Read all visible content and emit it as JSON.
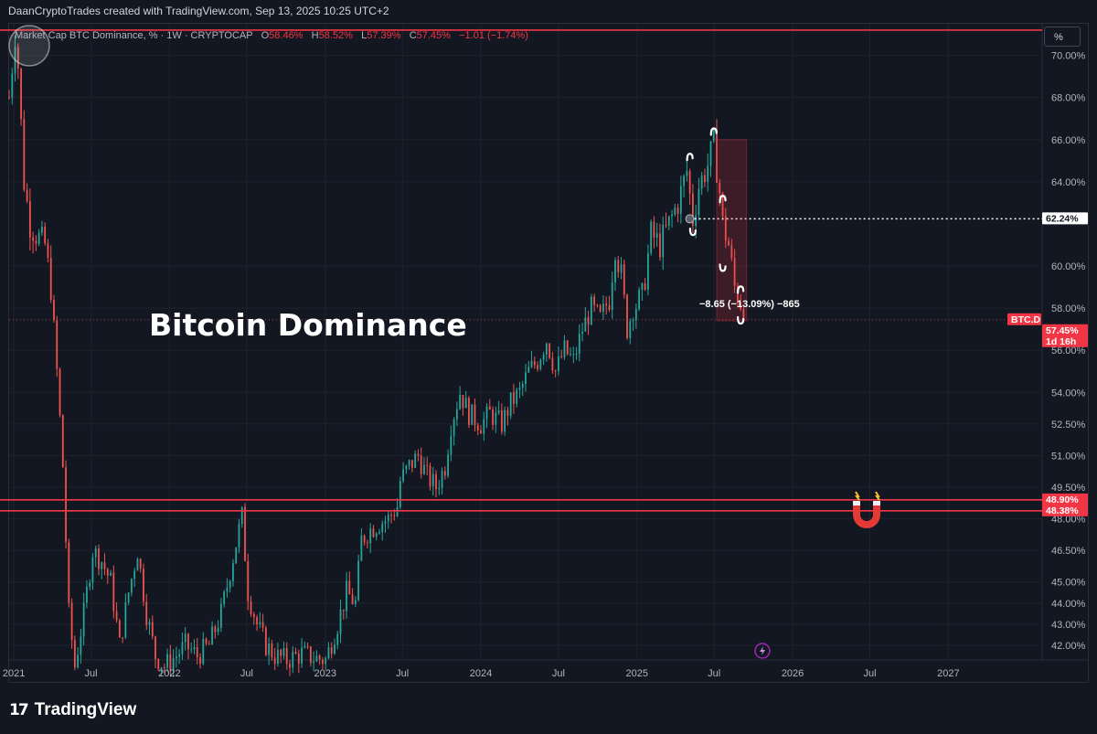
{
  "header": {
    "credit": "DaanCryptoTrades created with TradingView.com, Sep 13, 2025 10:25 UTC+2"
  },
  "legend": {
    "symbol": "Market Cap BTC Dominance, % · 1W · CRYPTOCAP",
    "o_label": "O",
    "o": "58.46%",
    "h_label": "H",
    "h": "58.52%",
    "l_label": "L",
    "l": "57.39%",
    "c_label": "C",
    "c": "57.45%",
    "change": "−1.01 (−1.74%)"
  },
  "toolbar": {
    "unit_button": "%"
  },
  "overlay": {
    "title": "Bitcoin Dominance",
    "measure": "−8.65 (−13.09%) −865"
  },
  "branding": {
    "logo_mark": "17",
    "logo_text": "TradingView"
  },
  "colors": {
    "background": "#131722",
    "up": "#26a69a",
    "down": "#ef5350",
    "line": "#f23645",
    "grid": "#1e222d"
  },
  "icons": [
    "magnet-icon",
    "lightning-icon",
    "circle-cursor-icon"
  ],
  "chart_data": {
    "type": "candlestick",
    "timeframe": "1W",
    "y_axis_unit": "%",
    "ylim": [
      41.3,
      71.5
    ],
    "xlim": [
      "2020-12-21",
      "2027-08-09"
    ],
    "y_ticks": [
      "70.00%",
      "68.00%",
      "66.00%",
      "64.00%",
      "60.00%",
      "58.00%",
      "56.00%",
      "54.00%",
      "52.50%",
      "51.00%",
      "49.50%",
      "48.00%",
      "46.50%",
      "45.00%",
      "44.00%",
      "43.00%",
      "42.00%"
    ],
    "y_tick_values": [
      70,
      68,
      66,
      64,
      60,
      58,
      56,
      54,
      52.5,
      51,
      49.5,
      48,
      46.5,
      45,
      44,
      43,
      42
    ],
    "x_ticks": [
      {
        "label": "2021",
        "date": "2021-01-01"
      },
      {
        "label": "Jul",
        "date": "2021-07-01"
      },
      {
        "label": "2022",
        "date": "2022-01-01"
      },
      {
        "label": "Jul",
        "date": "2022-07-01"
      },
      {
        "label": "2023",
        "date": "2023-01-01"
      },
      {
        "label": "Jul",
        "date": "2023-07-01"
      },
      {
        "label": "2024",
        "date": "2024-01-01"
      },
      {
        "label": "Jul",
        "date": "2024-07-01"
      },
      {
        "label": "2025",
        "date": "2025-01-01"
      },
      {
        "label": "Jul",
        "date": "2025-07-01"
      },
      {
        "label": "2026",
        "date": "2026-01-01"
      },
      {
        "label": "Jul",
        "date": "2026-07-01"
      },
      {
        "label": "2027",
        "date": "2027-01-01"
      }
    ],
    "series_anchors": [
      [
        "2020-12-21",
        68.0
      ],
      [
        "2021-01-04",
        71.0
      ],
      [
        "2021-01-11",
        69.5
      ],
      [
        "2021-01-25",
        64.0
      ],
      [
        "2021-02-08",
        62.0
      ],
      [
        "2021-02-22",
        61.5
      ],
      [
        "2021-03-15",
        61.0
      ],
      [
        "2021-03-29",
        59.0
      ],
      [
        "2021-04-12",
        55.0
      ],
      [
        "2021-04-26",
        50.5
      ],
      [
        "2021-05-10",
        43.5
      ],
      [
        "2021-05-24",
        41.0
      ],
      [
        "2021-06-14",
        43.5
      ],
      [
        "2021-07-05",
        46.5
      ],
      [
        "2021-07-26",
        46.0
      ],
      [
        "2021-08-16",
        45.0
      ],
      [
        "2021-09-06",
        42.0
      ],
      [
        "2021-09-27",
        44.5
      ],
      [
        "2021-10-18",
        46.5
      ],
      [
        "2021-11-08",
        43.5
      ],
      [
        "2021-11-29",
        41.5
      ],
      [
        "2021-12-20",
        41.0
      ],
      [
        "2022-01-17",
        41.5
      ],
      [
        "2022-02-07",
        42.0
      ],
      [
        "2022-03-07",
        41.5
      ],
      [
        "2022-04-04",
        42.0
      ],
      [
        "2022-05-02",
        43.5
      ],
      [
        "2022-05-23",
        45.5
      ],
      [
        "2022-06-13",
        47.5
      ],
      [
        "2022-06-20",
        48.1
      ],
      [
        "2022-07-04",
        44.5
      ],
      [
        "2022-07-25",
        43.0
      ],
      [
        "2022-08-15",
        42.0
      ],
      [
        "2022-09-05",
        41.5
      ],
      [
        "2022-10-03",
        41.3
      ],
      [
        "2022-11-07",
        41.6
      ],
      [
        "2022-12-05",
        41.4
      ],
      [
        "2023-01-02",
        41.3
      ],
      [
        "2023-01-30",
        43.0
      ],
      [
        "2023-02-20",
        44.5
      ],
      [
        "2023-03-13",
        44.0
      ],
      [
        "2023-03-27",
        47.0
      ],
      [
        "2023-04-17",
        47.5
      ],
      [
        "2023-05-08",
        47.8
      ],
      [
        "2023-05-29",
        48.0
      ],
      [
        "2023-06-19",
        48.6
      ],
      [
        "2023-06-26",
        49.8
      ],
      [
        "2023-07-17",
        50.5
      ],
      [
        "2023-08-07",
        51.0
      ],
      [
        "2023-08-28",
        50.0
      ],
      [
        "2023-09-18",
        49.5
      ],
      [
        "2023-10-09",
        50.5
      ],
      [
        "2023-10-23",
        52.5
      ],
      [
        "2023-11-13",
        54.0
      ],
      [
        "2023-12-04",
        53.0
      ],
      [
        "2024-01-01",
        52.5
      ],
      [
        "2024-01-22",
        53.0
      ],
      [
        "2024-02-19",
        52.5
      ],
      [
        "2024-03-11",
        53.5
      ],
      [
        "2024-04-01",
        54.0
      ],
      [
        "2024-04-22",
        55.0
      ],
      [
        "2024-05-13",
        55.5
      ],
      [
        "2024-06-03",
        56.5
      ],
      [
        "2024-06-24",
        55.0
      ],
      [
        "2024-07-15",
        56.0
      ],
      [
        "2024-08-05",
        55.5
      ],
      [
        "2024-08-26",
        57.0
      ],
      [
        "2024-09-16",
        58.0
      ],
      [
        "2024-10-07",
        57.5
      ],
      [
        "2024-10-28",
        58.5
      ],
      [
        "2024-11-11",
        61.0
      ],
      [
        "2024-11-25",
        59.5
      ],
      [
        "2024-12-09",
        57.0
      ],
      [
        "2024-12-23",
        58.0
      ],
      [
        "2025-01-13",
        58.5
      ],
      [
        "2025-02-03",
        61.5
      ],
      [
        "2025-02-24",
        61.0
      ],
      [
        "2025-03-17",
        62.0
      ],
      [
        "2025-04-07",
        63.0
      ],
      [
        "2025-04-28",
        64.5
      ],
      [
        "2025-05-12",
        62.2
      ],
      [
        "2025-05-26",
        63.8
      ],
      [
        "2025-06-16",
        64.8
      ],
      [
        "2025-06-30",
        65.8
      ],
      [
        "2025-07-14",
        63.5
      ],
      [
        "2025-07-21",
        62.0
      ],
      [
        "2025-08-04",
        61.0
      ],
      [
        "2025-08-18",
        59.0
      ],
      [
        "2025-09-01",
        58.3
      ],
      [
        "2025-09-08",
        57.45
      ]
    ],
    "price_labels": [
      {
        "label": "48.90%",
        "value": 48.9,
        "color": "#f23645"
      },
      {
        "label": "48.38%",
        "value": 48.38,
        "color": "#f23645"
      },
      {
        "label": "62.24%",
        "value": 62.24,
        "color": "#ffffff"
      },
      {
        "label": "BTC.D",
        "value": 57.45,
        "color": "#f23645"
      },
      {
        "label": "57.45%",
        "value": 57.45,
        "color": "#f23645"
      },
      {
        "label": "1d 16h",
        "value": 57.45,
        "color": "#f23645"
      }
    ],
    "horizontal_levels": [
      {
        "name": "top-resistance",
        "value": 71.2,
        "color": "#f23645"
      },
      {
        "name": "support-upper",
        "value": 48.9,
        "color": "#f23645"
      },
      {
        "name": "support-lower",
        "value": 48.38,
        "color": "#f23645"
      },
      {
        "name": "peak-ref",
        "value": 62.24,
        "color": "#ffffff",
        "style": "dotted",
        "from": "2025-05-05"
      }
    ],
    "drawdown_box": {
      "from": "2025-07-07",
      "to": "2025-09-15",
      "top": 66.0,
      "bottom": 57.4,
      "measure": "−8.65 (−13.09%) −865"
    },
    "arrows": [
      {
        "date": "2025-05-05",
        "value": 65.2,
        "dir": "up"
      },
      {
        "date": "2025-05-12",
        "value": 61.6,
        "dir": "down"
      },
      {
        "date": "2025-06-30",
        "value": 66.4,
        "dir": "up"
      },
      {
        "date": "2025-07-21",
        "value": 63.2,
        "dir": "up"
      },
      {
        "date": "2025-07-21",
        "value": 59.9,
        "dir": "down"
      },
      {
        "date": "2025-09-01",
        "value": 58.9,
        "dir": "up"
      },
      {
        "date": "2025-09-01",
        "value": 57.4,
        "dir": "down"
      }
    ]
  }
}
